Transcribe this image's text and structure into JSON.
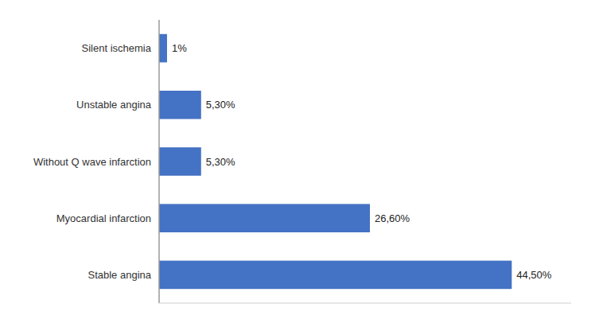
{
  "chart_data": {
    "type": "bar",
    "orientation": "horizontal",
    "categories": [
      "Stable angina",
      "Myocardial infarction",
      "Without Q wave infarction",
      "Unstable angina",
      "Silent ischemia"
    ],
    "values": [
      44.5,
      26.6,
      5.3,
      5.3,
      1.0
    ],
    "value_labels": [
      "44,50%",
      "26,60%",
      "5,30%",
      "5,30%",
      "1%"
    ],
    "color": "#4472C4",
    "xlim": [
      0,
      52
    ],
    "data_labels": true,
    "tick_labels": "y",
    "grid": false
  }
}
